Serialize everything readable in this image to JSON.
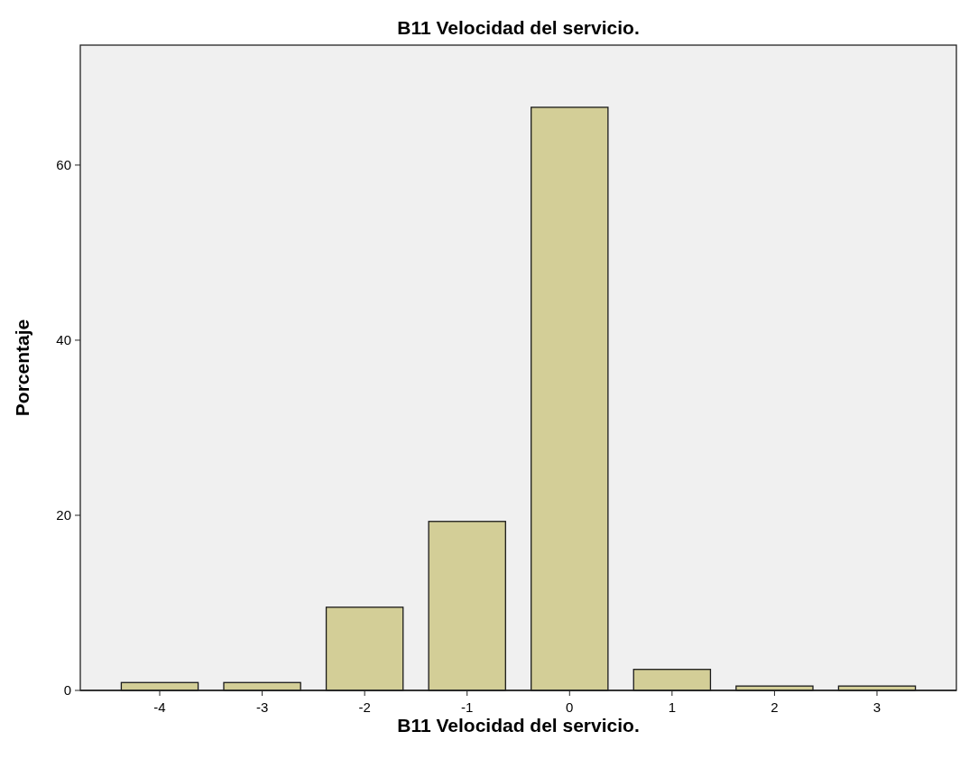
{
  "chart_data": {
    "type": "bar",
    "title": "B11 Velocidad del servicio.",
    "xlabel": "B11 Velocidad del servicio.",
    "ylabel": "Porcentaje",
    "categories": [
      "-4",
      "-3",
      "-2",
      "-1",
      "0",
      "1",
      "2",
      "3"
    ],
    "values": [
      0.9,
      0.9,
      9.5,
      19.3,
      66.6,
      2.4,
      0.5,
      0.5
    ],
    "color": "#d3ce97",
    "ylim": [
      0,
      73.7
    ],
    "yticks": [
      0,
      20,
      40,
      60
    ],
    "grid": false
  }
}
